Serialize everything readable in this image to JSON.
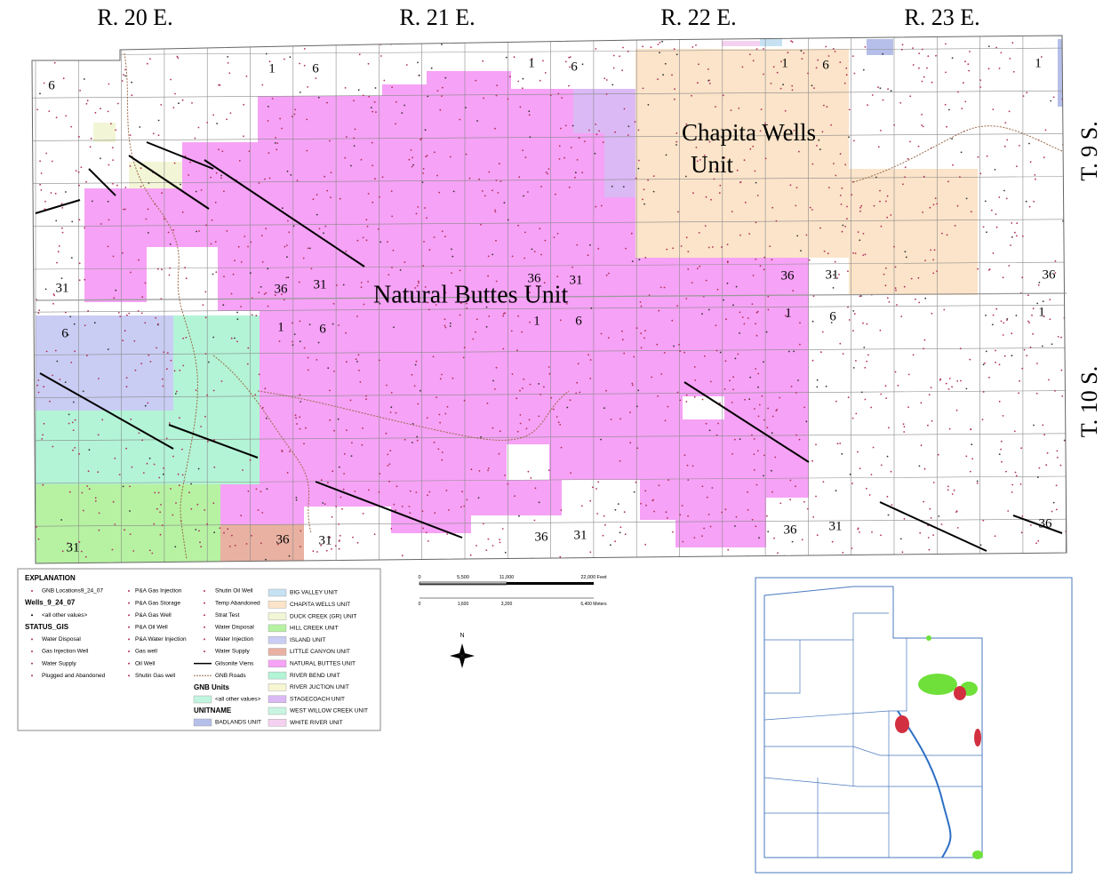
{
  "range_labels": [
    "R. 20 E.",
    "R. 21 E.",
    "R. 22 E.",
    "R. 23 E."
  ],
  "township_labels": [
    "T. 9 S.",
    "T. 10 S."
  ],
  "unit_labels": {
    "chapita_wells": [
      "Chapita Wells",
      "Unit"
    ],
    "natural_buttes": "Natural Buttes Unit"
  },
  "section_numbers": [
    "6",
    "1",
    "6",
    "1",
    "6",
    "1",
    "6",
    "1",
    "31",
    "36",
    "31",
    "36",
    "31",
    "36",
    "31",
    "36",
    "6",
    "1",
    "6",
    "1",
    "6",
    "1",
    "6",
    "1",
    "31",
    "36",
    "31",
    "36",
    "31",
    "36",
    "31",
    "36"
  ],
  "legend": {
    "title": "EXPLANATION",
    "column1": [
      "GNB Locations9_24_07",
      "Wells_9_24_07",
      "<all other values>",
      "STATUS_GIS",
      "Water Disposal",
      "Gas Injection Well",
      "Water Supply",
      "Plugged and Abandoned"
    ],
    "column2": [
      "P&A Gas Injection",
      "P&A Gas Storage",
      "P&A Gas Well",
      "P&A Oil Well",
      "P&A Water Injection",
      "Gas well",
      "Oil Well",
      "Shutin Gas well"
    ],
    "column3": [
      "Shutin Oil Well",
      "Temp Abandoned",
      "Strat Test",
      "Water Disposal",
      "Water Injection",
      "Water Supply",
      "Gilsonite Viens",
      "GNB Roads"
    ],
    "gnb_units_title": "GNB Units",
    "gnb_units_other": {
      "label": "<all other values>",
      "color": "#c2f5e0"
    },
    "unitname_title": "UNITNAME",
    "units": [
      {
        "name": "BADLANDS UNIT",
        "color": "#b6bfe9"
      },
      {
        "name": "BIG VALLEY UNIT",
        "color": "#c6e2f2"
      },
      {
        "name": "CHAPITA WELLS UNIT",
        "color": "#fbe4c9"
      },
      {
        "name": "DUCK CREEK (GR) UNIT",
        "color": "#f3f6d6"
      },
      {
        "name": "HILL CREEK UNIT",
        "color": "#b6f2a2"
      },
      {
        "name": "ISLAND UNIT",
        "color": "#c9cdf4"
      },
      {
        "name": "LITTLE CANYON UNIT",
        "color": "#e8b1a1"
      },
      {
        "name": "NATURAL BUTTES UNIT",
        "color": "#f6a2f6"
      },
      {
        "name": "RIVER BEND UNIT",
        "color": "#b3f4d6"
      },
      {
        "name": "RIVER JUCTION UNIT",
        "color": "#f6f6d2"
      },
      {
        "name": "STAGECOACH UNIT",
        "color": "#dbb9f5"
      },
      {
        "name": "WEST WILLOW CREEK UNIT",
        "color": "#c9f4e2"
      },
      {
        "name": "WHITE RIVER UNIT",
        "color": "#f5d1f1"
      }
    ]
  },
  "scale_bar": {
    "feet": [
      "0",
      "5,500",
      "11,000",
      "22,000 Feet"
    ],
    "meters": [
      "0",
      "1,600",
      "3,200",
      "6,400 Meters"
    ]
  },
  "north": "N"
}
